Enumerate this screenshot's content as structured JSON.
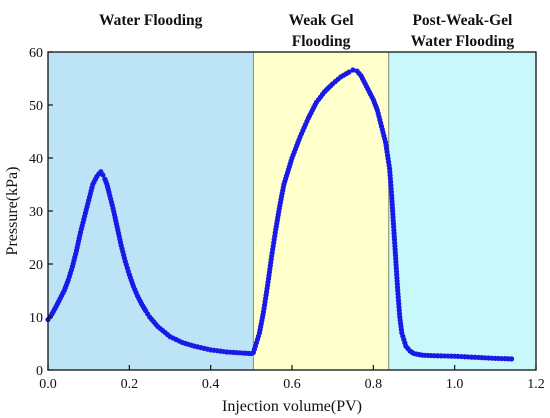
{
  "chart_data": {
    "type": "line",
    "title": "",
    "xlabel": "Injection volume(PV)",
    "ylabel": "Pressure(kPa)",
    "xlim": [
      0.0,
      1.2
    ],
    "ylim": [
      0,
      60
    ],
    "x_ticks": [
      "0.0",
      "0.2",
      "0.4",
      "0.6",
      "0.8",
      "1.0",
      "1.2"
    ],
    "y_ticks": [
      "0",
      "10",
      "20",
      "30",
      "40",
      "50",
      "60"
    ],
    "grid": false,
    "marker": "circle",
    "series_color": "#1a1ae6",
    "phases": [
      {
        "label_lines": [
          "Water Flooding"
        ],
        "x_start": 0.0,
        "x_end": 0.505,
        "color": "#bde3f7"
      },
      {
        "label_lines": [
          "Weak Gel",
          "Flooding"
        ],
        "x_start": 0.505,
        "x_end": 0.838,
        "color": "#ffffcc"
      },
      {
        "label_lines": [
          "Post-Weak-Gel",
          "Water Flooding"
        ],
        "x_start": 0.838,
        "x_end": 1.2,
        "color": "#c8f8fa"
      }
    ],
    "series": [
      {
        "x": [
          0.0,
          0.01,
          0.02,
          0.03,
          0.04,
          0.05,
          0.06,
          0.07,
          0.08,
          0.09,
          0.1,
          0.11,
          0.12,
          0.125,
          0.13,
          0.135,
          0.14,
          0.145,
          0.15,
          0.16,
          0.17,
          0.18,
          0.19,
          0.2,
          0.21,
          0.22,
          0.23,
          0.24,
          0.25,
          0.27,
          0.3,
          0.33,
          0.36,
          0.4,
          0.44,
          0.48,
          0.5,
          0.505,
          0.51,
          0.52,
          0.53,
          0.54,
          0.55,
          0.56,
          0.57,
          0.58,
          0.6,
          0.62,
          0.64,
          0.66,
          0.68,
          0.7,
          0.72,
          0.74,
          0.75,
          0.76,
          0.77,
          0.78,
          0.79,
          0.8,
          0.81,
          0.82,
          0.83,
          0.84,
          0.845,
          0.85,
          0.855,
          0.86,
          0.865,
          0.87,
          0.88,
          0.89,
          0.9,
          0.92,
          0.95,
          1.0,
          1.05,
          1.1,
          1.14
        ],
        "y": [
          9.5,
          10.6,
          12.0,
          13.5,
          15.0,
          17.0,
          19.5,
          22.5,
          26.0,
          29.0,
          32.0,
          35.0,
          36.5,
          37.0,
          37.4,
          36.8,
          36.0,
          35.0,
          33.5,
          30.5,
          27.0,
          23.5,
          20.5,
          18.0,
          15.8,
          14.0,
          12.5,
          11.2,
          10.0,
          8.2,
          6.3,
          5.2,
          4.5,
          3.8,
          3.4,
          3.2,
          3.1,
          3.3,
          4.5,
          7.0,
          11.0,
          16.0,
          21.5,
          26.5,
          31.0,
          35.0,
          40.0,
          44.0,
          47.5,
          50.5,
          52.5,
          54.0,
          55.3,
          56.2,
          56.6,
          56.4,
          55.5,
          54.0,
          52.5,
          51.0,
          49.0,
          46.0,
          43.0,
          38.0,
          33.0,
          27.0,
          21.0,
          15.0,
          10.0,
          7.0,
          4.5,
          3.6,
          3.1,
          2.8,
          2.7,
          2.6,
          2.4,
          2.2,
          2.1
        ]
      }
    ]
  }
}
